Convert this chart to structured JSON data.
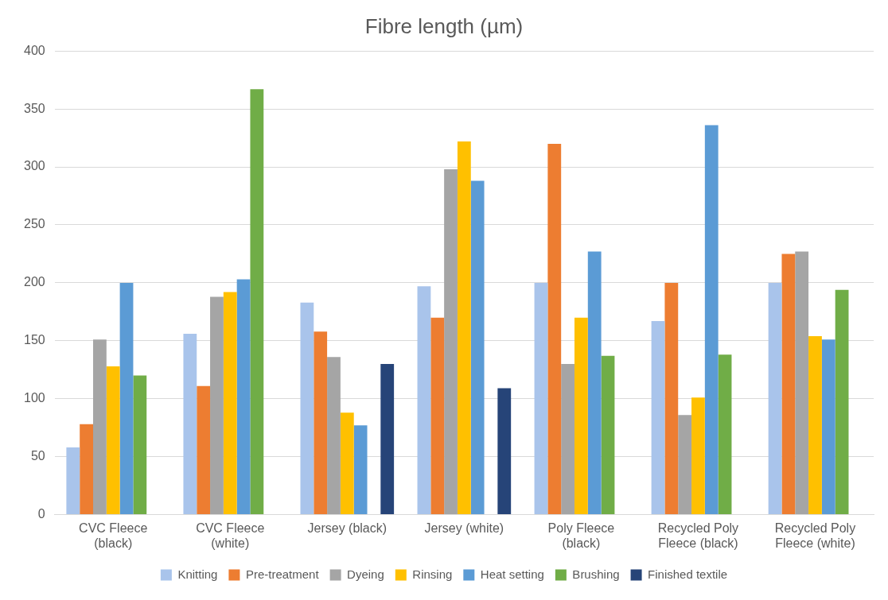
{
  "chart_data": {
    "type": "bar",
    "title": "Fibre length (µm)",
    "categories": [
      "CVC Fleece (black)",
      "CVC Fleece (white)",
      "Jersey (black)",
      "Jersey (white)",
      "Poly Fleece (black)",
      "Recycled Poly Fleece (black)",
      "Recycled Poly Fleece (white)"
    ],
    "series": [
      {
        "name": "Knitting",
        "color": "#a9c4eb",
        "values": [
          58,
          156,
          183,
          197,
          200,
          167,
          200
        ]
      },
      {
        "name": "Pre-treatment",
        "color": "#ed7d31",
        "values": [
          78,
          111,
          158,
          170,
          320,
          200,
          225
        ]
      },
      {
        "name": "Dyeing",
        "color": "#a5a5a5",
        "values": [
          151,
          188,
          136,
          298,
          130,
          86,
          227
        ]
      },
      {
        "name": "Rinsing",
        "color": "#ffc000",
        "values": [
          128,
          192,
          88,
          322,
          170,
          101,
          154
        ]
      },
      {
        "name": "Heat setting",
        "color": "#5b9bd5",
        "values": [
          200,
          203,
          77,
          288,
          227,
          336,
          151
        ]
      },
      {
        "name": "Brushing",
        "color": "#70ad47",
        "values": [
          120,
          367,
          null,
          null,
          137,
          138,
          194
        ]
      },
      {
        "name": "Finished textile",
        "color": "#264478",
        "values": [
          null,
          null,
          130,
          109,
          null,
          null,
          null
        ]
      }
    ],
    "ylim": [
      0,
      400
    ],
    "yticks": [
      0,
      50,
      100,
      150,
      200,
      250,
      300,
      350,
      400
    ],
    "grid": "y",
    "legend": "bottom"
  }
}
